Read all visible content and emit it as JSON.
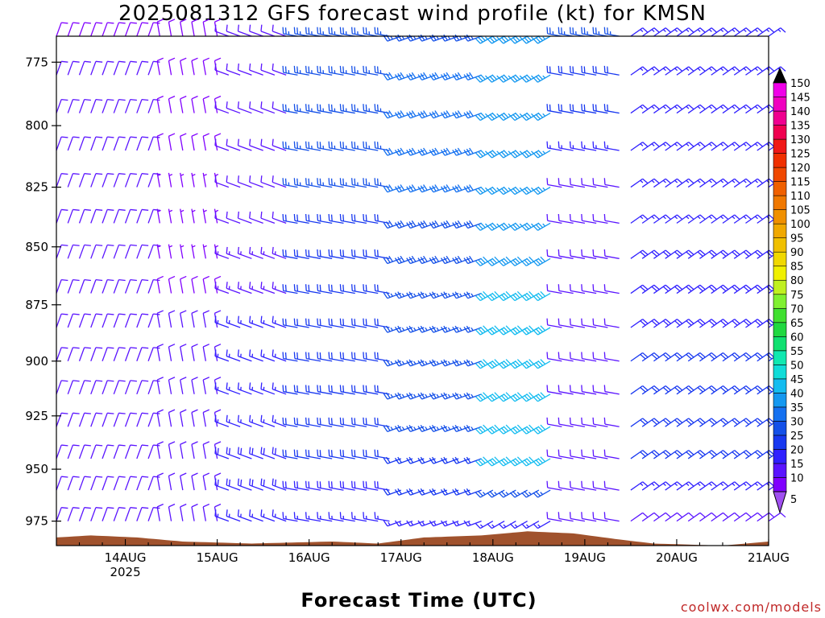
{
  "page": {
    "title": "2025081312 GFS forecast wind profile (kt) for KMSN",
    "xlabel": "Forecast Time (UTC)",
    "credit": "coolwx.com/models"
  },
  "chart_data": {
    "type": "wind-barb-profile",
    "title": "2025081312 GFS forecast wind profile (kt) for KMSN",
    "xlabel": "Forecast Time (UTC)",
    "ylabel": "",
    "x_range_hours": [
      -6,
      180
    ],
    "y_scale": "log-pressure",
    "ylim_hpa": [
      765,
      987
    ],
    "x_ticks": [
      {
        "hour": 12,
        "label": "14AUG",
        "sublabel": "2025"
      },
      {
        "hour": 36,
        "label": "15AUG"
      },
      {
        "hour": 60,
        "label": "16AUG"
      },
      {
        "hour": 84,
        "label": "17AUG"
      },
      {
        "hour": 108,
        "label": "18AUG"
      },
      {
        "hour": 132,
        "label": "19AUG"
      },
      {
        "hour": 156,
        "label": "20AUG"
      },
      {
        "hour": 180,
        "label": "21AUG"
      }
    ],
    "y_ticks": [
      {
        "value": 775,
        "label": "775"
      },
      {
        "value": 800,
        "label": "800"
      },
      {
        "value": 825,
        "label": "825"
      },
      {
        "value": 850,
        "label": "850"
      },
      {
        "value": 875,
        "label": "875"
      },
      {
        "value": 900,
        "label": "900"
      },
      {
        "value": 925,
        "label": "925"
      },
      {
        "value": 950,
        "label": "950"
      },
      {
        "value": 975,
        "label": "975"
      }
    ],
    "pressure_levels_hpa": [
      765,
      780,
      795,
      810,
      825,
      840,
      855,
      870,
      885,
      900,
      915,
      930,
      945,
      960,
      975
    ],
    "time_step_hours": 3,
    "wind_profile_periods": [
      {
        "hours": [
          -6,
          18
        ],
        "direction_deg": 20,
        "speed_kt": [
          8,
          10,
          10,
          10,
          10,
          10,
          12,
          12,
          10,
          10,
          10,
          10,
          10,
          10,
          10
        ]
      },
      {
        "hours": [
          21,
          36
        ],
        "direction_deg": 350,
        "speed_kt": [
          8,
          8,
          8,
          8,
          6,
          6,
          6,
          8,
          10,
          10,
          10,
          10,
          10,
          10,
          10
        ]
      },
      {
        "hours": [
          39,
          54
        ],
        "direction_deg": 290,
        "speed_kt": [
          10,
          10,
          10,
          12,
          12,
          12,
          14,
          14,
          16,
          16,
          16,
          16,
          18,
          18,
          15
        ]
      },
      {
        "hours": [
          57,
          81
        ],
        "direction_deg": 280,
        "speed_kt": [
          25,
          25,
          25,
          25,
          25,
          22,
          22,
          22,
          20,
          20,
          20,
          20,
          20,
          18,
          15
        ]
      },
      {
        "hours": [
          84,
          105
        ],
        "direction_deg": 250,
        "speed_kt": [
          25,
          30,
          30,
          30,
          30,
          28,
          28,
          25,
          25,
          25,
          25,
          25,
          22,
          20,
          15
        ]
      },
      {
        "hours": [
          108,
          123
        ],
        "direction_deg": 240,
        "speed_kt": [
          35,
          35,
          35,
          35,
          35,
          35,
          38,
          40,
          40,
          40,
          40,
          40,
          40,
          25,
          15
        ]
      },
      {
        "hours": [
          126,
          141
        ],
        "direction_deg": 280,
        "speed_kt": [
          25,
          20,
          20,
          15,
          12,
          12,
          10,
          10,
          10,
          10,
          10,
          10,
          10,
          10,
          10
        ]
      },
      {
        "hours": [
          144,
          180
        ],
        "direction_deg": 55,
        "speed_kt": [
          15,
          15,
          15,
          15,
          15,
          15,
          18,
          18,
          18,
          20,
          20,
          20,
          20,
          15,
          12
        ]
      }
    ],
    "surface_pressure_hpa": [
      {
        "hour": -6,
        "p": 983
      },
      {
        "hour": 3,
        "p": 982
      },
      {
        "hour": 15,
        "p": 983
      },
      {
        "hour": 27,
        "p": 985
      },
      {
        "hour": 45,
        "p": 986
      },
      {
        "hour": 66,
        "p": 985
      },
      {
        "hour": 78,
        "p": 986
      },
      {
        "hour": 90,
        "p": 983
      },
      {
        "hour": 105,
        "p": 982
      },
      {
        "hour": 117,
        "p": 980
      },
      {
        "hour": 129,
        "p": 981
      },
      {
        "hour": 141,
        "p": 984
      },
      {
        "hour": 150,
        "p": 986
      },
      {
        "hour": 168,
        "p": 987
      },
      {
        "hour": 180,
        "p": 985
      }
    ],
    "colorbar": {
      "values": [
        5,
        10,
        15,
        20,
        25,
        30,
        35,
        40,
        45,
        50,
        55,
        60,
        65,
        70,
        75,
        80,
        85,
        90,
        95,
        100,
        105,
        110,
        115,
        120,
        125,
        130,
        135,
        140,
        145,
        150
      ],
      "colors": [
        "#8000ff",
        "#5a14ff",
        "#3020ff",
        "#1838f0",
        "#1450e8",
        "#1470f0",
        "#1498f0",
        "#14bcf0",
        "#10dcd8",
        "#10e8b0",
        "#10e070",
        "#20d840",
        "#40e030",
        "#80f030",
        "#c0f020",
        "#f0f000",
        "#f0d800",
        "#f0c000",
        "#f0a800",
        "#f09000",
        "#f07800",
        "#f06000",
        "#f04800",
        "#f03000",
        "#f01818",
        "#f00050",
        "#f00090",
        "#f000c0",
        "#f000e8",
        "#000000"
      ],
      "low_cap_color": "#a050f0",
      "high_cap_color": "#000000"
    },
    "terrain_color": "#a0522d"
  }
}
